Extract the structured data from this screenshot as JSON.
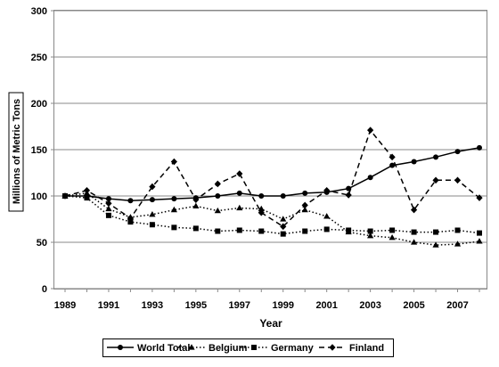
{
  "chart_data": {
    "type": "line",
    "title": "",
    "xlabel": "Year",
    "ylabel": "Millions of Metric Tons",
    "ylim": [
      0,
      300
    ],
    "yticks": [
      0,
      50,
      100,
      150,
      200,
      250,
      300
    ],
    "xlim": [
      1989,
      2008
    ],
    "xtick_labels": [
      "1989",
      "1991",
      "1993",
      "1995",
      "1997",
      "1999",
      "2001",
      "2003",
      "2005",
      "2007"
    ],
    "grid": "horizontal",
    "legend_position": "bottom",
    "x": [
      1989,
      1990,
      1991,
      1992,
      1993,
      1994,
      1995,
      1996,
      1997,
      1998,
      1999,
      2000,
      2001,
      2002,
      2003,
      2004,
      2005,
      2006,
      2007,
      2008
    ],
    "series": [
      {
        "name": "World Total",
        "color": "#000000",
        "dash": "solid",
        "marker": "circle",
        "values": [
          100,
          100,
          97,
          95,
          96,
          97,
          98,
          100,
          103,
          100,
          100,
          103,
          104,
          108,
          120,
          133,
          137,
          142,
          148,
          152
        ]
      },
      {
        "name": "Belgium",
        "color": "#000000",
        "dash": "dotted",
        "marker": "triangle",
        "values": [
          100,
          103,
          86,
          77,
          80,
          85,
          89,
          84,
          87,
          86,
          75,
          85,
          78,
          61,
          57,
          55,
          50,
          47,
          48,
          51
        ]
      },
      {
        "name": "Germany",
        "color": "#000000",
        "dash": "dotted",
        "marker": "square",
        "values": [
          100,
          98,
          79,
          72,
          69,
          66,
          65,
          62,
          63,
          62,
          59,
          62,
          64,
          63,
          62,
          63,
          61,
          61,
          63,
          60
        ]
      },
      {
        "name": "Finland",
        "color": "#000000",
        "dash": "dashed",
        "marker": "diamond",
        "values": [
          100,
          106,
          92,
          76,
          110,
          137,
          96,
          113,
          124,
          82,
          67,
          90,
          106,
          101,
          171,
          142,
          85,
          117,
          117,
          98
        ]
      }
    ]
  }
}
